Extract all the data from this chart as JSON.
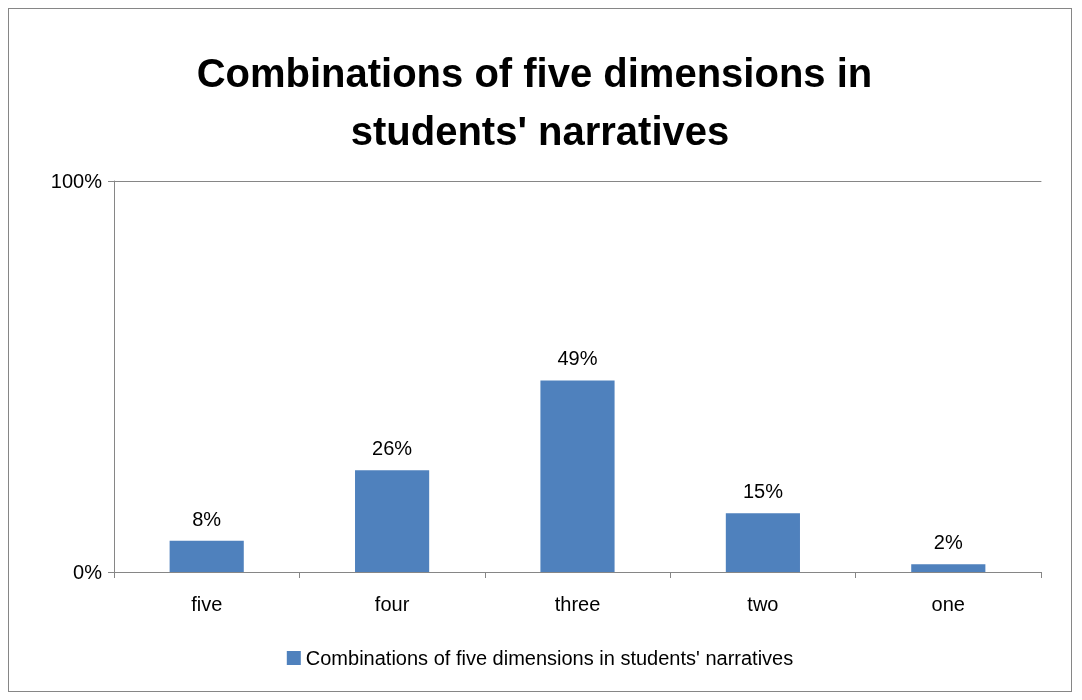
{
  "chart_data": {
    "type": "bar",
    "title": "Combinations of five dimensions in students' narratives",
    "categories": [
      "five",
      "four",
      "three",
      "two",
      "one"
    ],
    "series": [
      {
        "name": "Combinations of five dimensions in students' narratives",
        "color": "#4f81bd",
        "values": [
          8,
          26,
          49,
          15,
          2
        ],
        "value_labels": [
          "8%",
          "26%",
          "49%",
          "15%",
          "2%"
        ]
      }
    ],
    "ylim": [
      0,
      100
    ],
    "yticks": [
      {
        "value": 0,
        "label": "0%"
      },
      {
        "value": 100,
        "label": "100%"
      }
    ],
    "legend": "bottom"
  }
}
